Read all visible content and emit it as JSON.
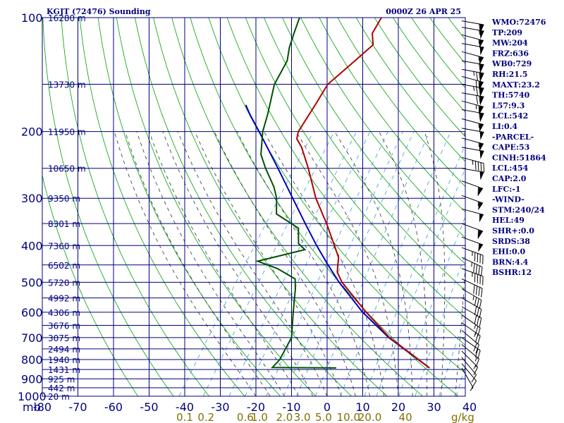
{
  "header": {
    "title": "KGJT (72476) Sounding",
    "time": "0000Z 26 APR 25"
  },
  "indices": [
    "WMO:72476",
    "TP:209",
    "MW:204",
    "FRZ:636",
    "WB0:729",
    "RH:21.5",
    "MAXT:23.2",
    "TH:5740",
    "L57:9.3",
    "LCL:542",
    "LI:0.4",
    "-PARCEL-",
    "CAPE:53",
    "CINH:51864",
    "LCL:454",
    "CAP:2.0",
    "LFC:-1",
    "-WIND-",
    "STM:240/24",
    "HEL:49",
    "SHR+:0.0",
    "SRDS:38",
    "EHI:0.0",
    "BRN:4.4",
    "BSHR:12"
  ],
  "colors": {
    "isobar": "#00007f",
    "isotherm": "#00007f",
    "dry_adiabat": "#00a000",
    "moist_adiabat": "#303030",
    "mixing_ratio": "#3a9ad9",
    "temperature": "#b00000",
    "dewpoint": "#005000",
    "parcel": "#0000c0",
    "wind": "#000000"
  },
  "chart_data": {
    "type": "line",
    "title": "KGJT (72476) Sounding",
    "x_label_prefix": "mb",
    "pressure_ticks": [
      100,
      200,
      300,
      400,
      500,
      600,
      700,
      800,
      900,
      1000
    ],
    "temp_ticks": [
      -80,
      -70,
      -60,
      -50,
      -40,
      -30,
      -20,
      -10,
      0,
      10,
      20,
      30,
      40
    ],
    "x_tick_labels": [
      "mb",
      "-80",
      "-70",
      "-60",
      "-50",
      "-40",
      "-30",
      "-20",
      "-10",
      "0",
      "10",
      "20",
      "30",
      "40"
    ],
    "mixing_ratio_labels": [
      {
        "t": -40,
        "label": "0.1"
      },
      {
        "t": -34,
        "label": "0.2"
      },
      {
        "t": -23,
        "label": "0.6"
      },
      {
        "t": -19,
        "label": "1.0"
      },
      {
        "t": -12,
        "label": "2.0"
      },
      {
        "t": -7,
        "label": "3.0"
      },
      {
        "t": -1,
        "label": "5.0"
      },
      {
        "t": 6,
        "label": "10.0"
      },
      {
        "t": 12,
        "label": "20.0"
      },
      {
        "t": 22,
        "label": "40"
      }
    ],
    "mixing_ratio_unit": "g/kg",
    "height_labels": [
      {
        "p": 100,
        "label": "16280 m"
      },
      {
        "p": 150,
        "label": "13730 m"
      },
      {
        "p": 200,
        "label": "11950 m"
      },
      {
        "p": 250,
        "label": "10650 m"
      },
      {
        "p": 300,
        "label": "9350 m"
      },
      {
        "p": 350,
        "label": "8301 m"
      },
      {
        "p": 400,
        "label": "7360 m"
      },
      {
        "p": 450,
        "label": "6502 m"
      },
      {
        "p": 500,
        "label": "5720 m"
      },
      {
        "p": 550,
        "label": "4992 m"
      },
      {
        "p": 600,
        "label": "4306 m"
      },
      {
        "p": 650,
        "label": "3676 m"
      },
      {
        "p": 700,
        "label": "3075 m"
      },
      {
        "p": 750,
        "label": "2494 m"
      },
      {
        "p": 800,
        "label": "1940 m"
      },
      {
        "p": 850,
        "label": "1431 m"
      },
      {
        "p": 900,
        "label": "925 m"
      },
      {
        "p": 950,
        "label": "442 m"
      },
      {
        "p": 1000,
        "label": "20 m"
      }
    ],
    "temperature": [
      {
        "p": 842,
        "t": 23.2
      },
      {
        "p": 800,
        "t": 18.5
      },
      {
        "p": 700,
        "t": 6.0
      },
      {
        "p": 600,
        "t": -5.5
      },
      {
        "p": 500,
        "t": -18.2
      },
      {
        "p": 470,
        "t": -21.5
      },
      {
        "p": 430,
        "t": -24.0
      },
      {
        "p": 400,
        "t": -27.5
      },
      {
        "p": 350,
        "t": -34.0
      },
      {
        "p": 300,
        "t": -42.0
      },
      {
        "p": 250,
        "t": -50.0
      },
      {
        "p": 220,
        "t": -56.0
      },
      {
        "p": 209,
        "t": -59.0
      },
      {
        "p": 200,
        "t": -60.0
      },
      {
        "p": 170,
        "t": -60.5
      },
      {
        "p": 150,
        "t": -61.0
      },
      {
        "p": 130,
        "t": -58.0
      },
      {
        "p": 118,
        "t": -56.0
      },
      {
        "p": 110,
        "t": -58.5
      },
      {
        "p": 100,
        "t": -59.0
      }
    ],
    "dewpoint": [
      {
        "p": 842,
        "t": -3.0
      },
      {
        "p": 840,
        "t": -21.0
      },
      {
        "p": 800,
        "t": -20.5
      },
      {
        "p": 700,
        "t": -21.5
      },
      {
        "p": 600,
        "t": -26.0
      },
      {
        "p": 520,
        "t": -30.0
      },
      {
        "p": 490,
        "t": -32.0
      },
      {
        "p": 460,
        "t": -39.0
      },
      {
        "p": 440,
        "t": -46.0
      },
      {
        "p": 410,
        "t": -35.0
      },
      {
        "p": 395,
        "t": -38.0
      },
      {
        "p": 360,
        "t": -41.0
      },
      {
        "p": 330,
        "t": -50.0
      },
      {
        "p": 300,
        "t": -53.0
      },
      {
        "p": 280,
        "t": -56.0
      },
      {
        "p": 250,
        "t": -62.0
      },
      {
        "p": 230,
        "t": -66.0
      },
      {
        "p": 200,
        "t": -70.0
      },
      {
        "p": 180,
        "t": -72.0
      },
      {
        "p": 150,
        "t": -76.0
      },
      {
        "p": 130,
        "t": -77.0
      },
      {
        "p": 120,
        "t": -79.0
      },
      {
        "p": 110,
        "t": -80.5
      },
      {
        "p": 100,
        "t": -82.0
      }
    ],
    "parcel": [
      {
        "p": 842,
        "t": 23.2
      },
      {
        "p": 700,
        "t": 5.8
      },
      {
        "p": 600,
        "t": -6.5
      },
      {
        "p": 500,
        "t": -19.0
      },
      {
        "p": 450,
        "t": -25.5
      },
      {
        "p": 400,
        "t": -32.5
      },
      {
        "p": 350,
        "t": -40.0
      },
      {
        "p": 300,
        "t": -48.5
      },
      {
        "p": 250,
        "t": -58.5
      },
      {
        "p": 200,
        "t": -71.0
      },
      {
        "p": 180,
        "t": -77.0
      },
      {
        "p": 170,
        "t": -80.0
      }
    ],
    "wind_barbs": [
      {
        "p": 102,
        "dir": 280,
        "spd": 60
      },
      {
        "p": 106,
        "dir": 280,
        "spd": 55
      },
      {
        "p": 111,
        "dir": 285,
        "spd": 55
      },
      {
        "p": 117,
        "dir": 280,
        "spd": 50
      },
      {
        "p": 123,
        "dir": 285,
        "spd": 55
      },
      {
        "p": 130,
        "dir": 280,
        "spd": 60
      },
      {
        "p": 137,
        "dir": 280,
        "spd": 75
      },
      {
        "p": 143,
        "dir": 285,
        "spd": 70
      },
      {
        "p": 150,
        "dir": 280,
        "spd": 75
      },
      {
        "p": 158,
        "dir": 280,
        "spd": 70
      },
      {
        "p": 166,
        "dir": 285,
        "spd": 65
      },
      {
        "p": 175,
        "dir": 280,
        "spd": 60
      },
      {
        "p": 185,
        "dir": 285,
        "spd": 55
      },
      {
        "p": 196,
        "dir": 280,
        "spd": 50
      },
      {
        "p": 208,
        "dir": 285,
        "spd": 55
      },
      {
        "p": 220,
        "dir": 280,
        "spd": 50
      },
      {
        "p": 234,
        "dir": 285,
        "spd": 45
      },
      {
        "p": 250,
        "dir": 280,
        "spd": 50
      },
      {
        "p": 270,
        "dir": 290,
        "spd": 60
      },
      {
        "p": 295,
        "dir": 290,
        "spd": 55
      },
      {
        "p": 320,
        "dir": 285,
        "spd": 50
      },
      {
        "p": 350,
        "dir": 290,
        "spd": 60
      },
      {
        "p": 380,
        "dir": 290,
        "spd": 50
      },
      {
        "p": 405,
        "dir": 290,
        "spd": 45
      },
      {
        "p": 430,
        "dir": 295,
        "spd": 45
      },
      {
        "p": 460,
        "dir": 290,
        "spd": 45
      },
      {
        "p": 490,
        "dir": 295,
        "spd": 40
      },
      {
        "p": 520,
        "dir": 300,
        "spd": 35
      },
      {
        "p": 550,
        "dir": 300,
        "spd": 30
      },
      {
        "p": 580,
        "dir": 300,
        "spd": 30
      },
      {
        "p": 610,
        "dir": 305,
        "spd": 25
      },
      {
        "p": 640,
        "dir": 305,
        "spd": 25
      },
      {
        "p": 670,
        "dir": 310,
        "spd": 20
      },
      {
        "p": 700,
        "dir": 305,
        "spd": 20
      },
      {
        "p": 730,
        "dir": 310,
        "spd": 15
      },
      {
        "p": 760,
        "dir": 315,
        "spd": 15
      },
      {
        "p": 790,
        "dir": 320,
        "spd": 10
      },
      {
        "p": 820,
        "dir": 320,
        "spd": 10
      },
      {
        "p": 842,
        "dir": 330,
        "spd": 5
      }
    ],
    "grid": true
  }
}
